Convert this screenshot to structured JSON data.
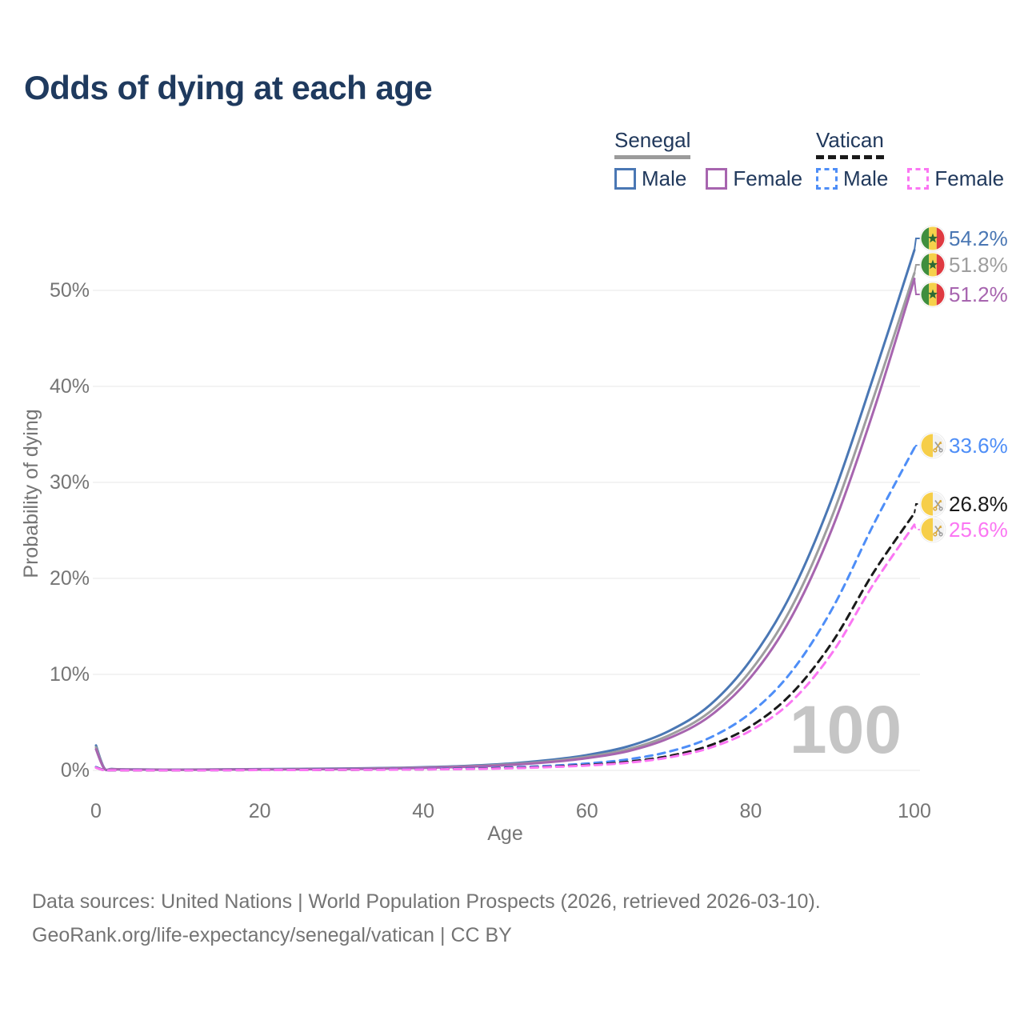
{
  "title": "Odds of dying at each age",
  "legend": {
    "groups": [
      {
        "label": "Senegal",
        "line_style": "solid",
        "underline_color": "#9b9b9b",
        "items": [
          {
            "label": "Male",
            "color": "#4a77b4"
          },
          {
            "label": "Female",
            "color": "#a765af"
          }
        ]
      },
      {
        "label": "Vatican",
        "line_style": "dashed",
        "underline_color": "#1a1a1a",
        "items": [
          {
            "label": "Male",
            "color": "#4e8ef7"
          },
          {
            "label": "Female",
            "color": "#fb76f3"
          }
        ]
      }
    ]
  },
  "chart_data": {
    "type": "line",
    "title": "Odds of dying at each age",
    "xlabel": "Age",
    "ylabel": "Probability of dying",
    "x_ticks": [
      0,
      20,
      40,
      60,
      80,
      100
    ],
    "y_ticks": [
      "0%",
      "10%",
      "20%",
      "30%",
      "40%",
      "50%"
    ],
    "y_tick_values": [
      0,
      10,
      20,
      30,
      40,
      50
    ],
    "xlim": [
      0,
      100
    ],
    "ylim_pct": [
      0,
      56
    ],
    "grid": "horizontal",
    "legend_position": "top-right",
    "watermark": "100",
    "x": [
      0,
      1,
      2,
      5,
      10,
      15,
      20,
      25,
      30,
      35,
      40,
      45,
      50,
      55,
      60,
      65,
      70,
      75,
      80,
      85,
      90,
      95,
      100
    ],
    "series": [
      {
        "name": "Senegal Male",
        "color": "#4a77b4",
        "dashed": false,
        "flag": "senegal",
        "end_label": "54.2%",
        "values": [
          2.6,
          0.25,
          0.15,
          0.1,
          0.08,
          0.1,
          0.13,
          0.16,
          0.2,
          0.25,
          0.33,
          0.46,
          0.68,
          1.05,
          1.6,
          2.5,
          4.1,
          6.8,
          11.5,
          18.5,
          28.5,
          41.0,
          54.2
        ]
      },
      {
        "name": "Senegal Both sexes",
        "color": "#9e9e9e",
        "dashed": false,
        "flag": "senegal",
        "end_label": "51.8%",
        "values": [
          2.4,
          0.22,
          0.13,
          0.09,
          0.07,
          0.09,
          0.11,
          0.14,
          0.17,
          0.22,
          0.29,
          0.41,
          0.6,
          0.92,
          1.42,
          2.2,
          3.65,
          6.1,
          10.4,
          17.0,
          26.6,
          38.8,
          51.8
        ]
      },
      {
        "name": "Senegal Female",
        "color": "#a765af",
        "dashed": false,
        "flag": "senegal",
        "end_label": "51.2%",
        "values": [
          2.2,
          0.2,
          0.12,
          0.08,
          0.06,
          0.08,
          0.1,
          0.12,
          0.15,
          0.19,
          0.26,
          0.37,
          0.54,
          0.83,
          1.28,
          2.0,
          3.35,
          5.65,
          9.7,
          16.0,
          25.3,
          37.4,
          51.2
        ]
      },
      {
        "name": "Vatican Male",
        "color": "#4e8ef7",
        "dashed": true,
        "flag": "vatican",
        "end_label": "33.6%",
        "values": [
          0.35,
          0.03,
          0.02,
          0.02,
          0.02,
          0.03,
          0.05,
          0.06,
          0.08,
          0.1,
          0.14,
          0.2,
          0.3,
          0.46,
          0.72,
          1.15,
          1.95,
          3.4,
          6.0,
          10.3,
          16.9,
          25.6,
          33.6
        ]
      },
      {
        "name": "Vatican Both sexes",
        "color": "#1a1a1a",
        "dashed": true,
        "flag": "vatican",
        "end_label": "26.8%",
        "values": [
          0.3,
          0.03,
          0.02,
          0.01,
          0.01,
          0.03,
          0.04,
          0.05,
          0.06,
          0.08,
          0.11,
          0.16,
          0.24,
          0.37,
          0.57,
          0.9,
          1.5,
          2.6,
          4.6,
          8.0,
          13.4,
          20.6,
          26.8
        ]
      },
      {
        "name": "Vatican Female",
        "color": "#fb76f3",
        "dashed": true,
        "flag": "vatican",
        "end_label": "25.6%",
        "values": [
          0.28,
          0.02,
          0.02,
          0.01,
          0.01,
          0.02,
          0.04,
          0.04,
          0.06,
          0.07,
          0.1,
          0.14,
          0.21,
          0.33,
          0.51,
          0.8,
          1.35,
          2.35,
          4.15,
          7.2,
          12.3,
          19.4,
          25.6
        ]
      }
    ],
    "flag_colors": {
      "senegal": {
        "green": "#3F8E3E",
        "yellow": "#F5D14B",
        "red": "#DF3A41",
        "star": "#2D6A34"
      },
      "vatican": {
        "gold": "#F6CE49",
        "white": "#F2F2F2",
        "key_gold": "#D9A93A",
        "key_silver": "#9E9E9E"
      }
    },
    "axis_color": "#757575",
    "grid_color": "#ececec",
    "watermark_color": "#c5c5c5"
  },
  "footer": {
    "line1": "Data sources: United Nations | World Population Prospects (2026, retrieved 2026-03-10).",
    "line2": "GeoRank.org/life-expectancy/senegal/vatican | CC BY"
  }
}
